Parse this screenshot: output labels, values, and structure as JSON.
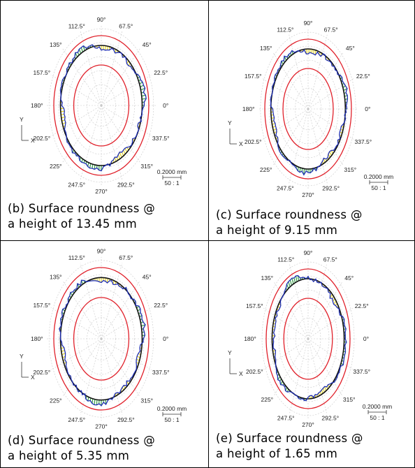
{
  "panels": [
    {
      "caption_line1": "(b) Surface roundness @",
      "caption_line2": "a height of 13.45 mm"
    },
    {
      "caption_line1": "(c) Surface roundness @",
      "caption_line2": "a height of 9.15 mm"
    },
    {
      "caption_line1": "(d) Surface roundness @",
      "caption_line2": "a height of 5.35 mm"
    },
    {
      "caption_line1": "(e) Surface roundness @",
      "caption_line2": "a height of 1.65 mm"
    }
  ],
  "angle_labels": [
    "90°",
    "67.5°",
    "45°",
    "22.5°",
    "0°",
    "337.5°",
    "315°",
    "292.5°",
    "270°",
    "247.5°",
    "225°",
    "202.5°",
    "180°",
    "157.5°",
    "135°",
    "112.5°"
  ],
  "axis_labels": {
    "y": "Y",
    "x": "X"
  },
  "scale": {
    "length": "0.2000 mm",
    "ratio": "50 : 1"
  },
  "colors": {
    "reference_circle": "#e0202a",
    "profile": "#1f2fb5",
    "best_fit": "#111111",
    "fill_green": "#38a04a",
    "fill_yellow": "#e2d320",
    "grid": "#c8c8c8"
  }
}
